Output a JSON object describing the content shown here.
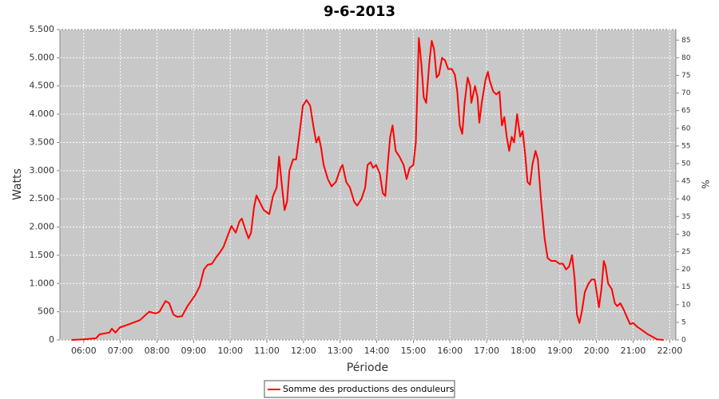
{
  "chart_data": {
    "type": "line",
    "title": "9-6-2013",
    "x_label": "Période",
    "y_label": "Watts",
    "y2_label": "%",
    "x": [
      340,
      360,
      380,
      386,
      402,
      406,
      412,
      419,
      432,
      452,
      467,
      478,
      484,
      494,
      500,
      507,
      513,
      521,
      530,
      543,
      550,
      557,
      563,
      570,
      576,
      583,
      589,
      596,
      602,
      609,
      615,
      619,
      625,
      630,
      634,
      639,
      643,
      648,
      655,
      664,
      670,
      676,
      680,
      685,
      689,
      693,
      697,
      703,
      708,
      714,
      719,
      725,
      731,
      736,
      741,
      745,
      749,
      753,
      760,
      766,
      773,
      781,
      784,
      790,
      796,
      803,
      808,
      815,
      821,
      825,
      830,
      834,
      839,
      845,
      850,
      854,
      858,
      862,
      866,
      871,
      877,
      884,
      889,
      894,
      900,
      904,
      909,
      913,
      917,
      921,
      926,
      930,
      934,
      938,
      942,
      947,
      952,
      957,
      963,
      968,
      972,
      976,
      980,
      984,
      989,
      993,
      995,
      1001,
      1005,
      1008,
      1012,
      1018,
      1022,
      1025,
      1031,
      1036,
      1041,
      1045,
      1049,
      1053,
      1057,
      1061,
      1065,
      1070,
      1075,
      1079,
      1083,
      1087,
      1091,
      1095,
      1100,
      1104,
      1109,
      1115,
      1120,
      1126,
      1133,
      1139,
      1145,
      1150,
      1155,
      1160,
      1164,
      1168,
      1172,
      1176,
      1181,
      1187,
      1192,
      1197,
      1201,
      1204,
      1208,
      1212,
      1215,
      1219,
      1225,
      1230,
      1234,
      1239,
      1244,
      1250,
      1255,
      1260,
      1267,
      1274,
      1284,
      1293,
      1299,
      1310
    ],
    "series": [
      {
        "name": "Somme des productions des onduleurs",
        "color": "#ff0000",
        "values": [
          0,
          10,
          30,
          100,
          130,
          200,
          130,
          220,
          270,
          350,
          500,
          470,
          500,
          690,
          650,
          450,
          410,
          420,
          600,
          800,
          950,
          1250,
          1330,
          1350,
          1450,
          1550,
          1650,
          1850,
          2020,
          1900,
          2100,
          2150,
          1950,
          1800,
          1900,
          2350,
          2560,
          2450,
          2300,
          2230,
          2550,
          2700,
          3250,
          2700,
          2300,
          2450,
          3000,
          3200,
          3200,
          3700,
          4150,
          4250,
          4150,
          3800,
          3500,
          3600,
          3400,
          3100,
          2850,
          2720,
          2800,
          3050,
          3100,
          2800,
          2700,
          2450,
          2380,
          2500,
          2700,
          3100,
          3150,
          3050,
          3100,
          2950,
          2600,
          2550,
          3100,
          3600,
          3800,
          3350,
          3250,
          3100,
          2850,
          3050,
          3100,
          3500,
          5350,
          4900,
          4300,
          4200,
          4900,
          5300,
          5150,
          4650,
          4700,
          5000,
          4950,
          4800,
          4800,
          4700,
          4400,
          3800,
          3650,
          4200,
          4650,
          4500,
          4200,
          4500,
          4300,
          3850,
          4200,
          4600,
          4750,
          4600,
          4400,
          4350,
          4400,
          3800,
          3950,
          3600,
          3350,
          3600,
          3500,
          4000,
          3600,
          3700,
          3300,
          2800,
          2750,
          3100,
          3350,
          3200,
          2500,
          1800,
          1450,
          1400,
          1400,
          1350,
          1350,
          1250,
          1300,
          1500,
          1100,
          450,
          300,
          500,
          850,
          1000,
          1070,
          1070,
          800,
          580,
          900,
          1400,
          1300,
          1000,
          900,
          650,
          600,
          650,
          550,
          400,
          280,
          300,
          230,
          180,
          100,
          50,
          10,
          0
        ]
      }
    ],
    "xlim": [
      321,
      1330
    ],
    "xticks": [
      {
        "value": 360,
        "label": "06:00"
      },
      {
        "value": 420,
        "label": "07:00"
      },
      {
        "value": 480,
        "label": "08:00"
      },
      {
        "value": 540,
        "label": "09:00"
      },
      {
        "value": 600,
        "label": "10:00"
      },
      {
        "value": 660,
        "label": "11:00"
      },
      {
        "value": 720,
        "label": "12:00"
      },
      {
        "value": 780,
        "label": "13:00"
      },
      {
        "value": 840,
        "label": "14:00"
      },
      {
        "value": 900,
        "label": "15:00"
      },
      {
        "value": 960,
        "label": "16:00"
      },
      {
        "value": 1020,
        "label": "17:00"
      },
      {
        "value": 1080,
        "label": "18:00"
      },
      {
        "value": 1140,
        "label": "19:00"
      },
      {
        "value": 1200,
        "label": "20:00"
      },
      {
        "value": 1260,
        "label": "21:00"
      },
      {
        "value": 1320,
        "label": "22:00"
      }
    ],
    "ylim": [
      0,
      5500
    ],
    "yticks": [
      0,
      500,
      {
        "value": 1000,
        "label": "1.000"
      },
      {
        "value": 1500,
        "label": "1.500"
      },
      {
        "value": 2000,
        "label": "2.000"
      },
      {
        "value": 2500,
        "label": "2.500"
      },
      {
        "value": 3000,
        "label": "3.000"
      },
      {
        "value": 3500,
        "label": "3.500"
      },
      {
        "value": 4000,
        "label": "4.000"
      },
      {
        "value": 4500,
        "label": "4.500"
      },
      {
        "value": 5000,
        "label": "5.000"
      },
      {
        "value": 5500,
        "label": "5.500"
      }
    ],
    "y2lim": [
      0,
      88
    ],
    "y2ticks": [
      0,
      5,
      10,
      15,
      20,
      25,
      30,
      35,
      40,
      45,
      50,
      55,
      60,
      65,
      70,
      75,
      80,
      85
    ],
    "grid": true
  }
}
